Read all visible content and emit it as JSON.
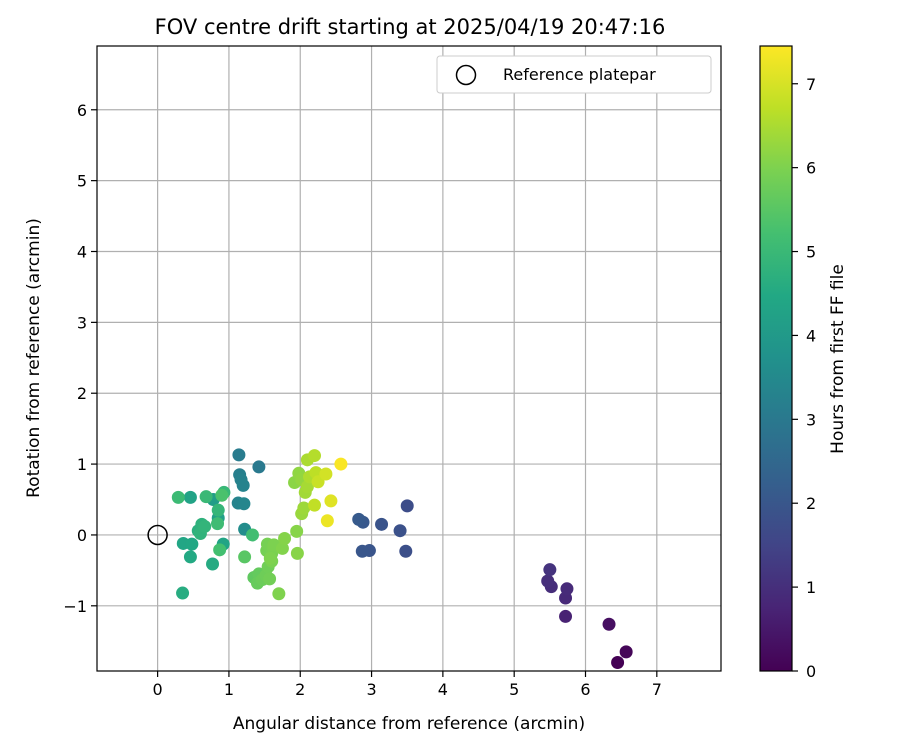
{
  "chart_data": {
    "type": "scatter",
    "title": "FOV centre drift starting at 2025/04/19 20:47:16",
    "xlabel": "Angular distance from reference (arcmin)",
    "ylabel": "Rotation from reference (arcmin)",
    "xlim": [
      -0.85,
      7.9
    ],
    "ylim": [
      -1.92,
      6.9
    ],
    "xticks": [
      0,
      1,
      2,
      3,
      4,
      5,
      6,
      7
    ],
    "yticks": [
      -1,
      0,
      1,
      2,
      3,
      4,
      5,
      6
    ],
    "grid": true,
    "legend": {
      "placement": "upper right",
      "entries": [
        "Reference platepar"
      ]
    },
    "reference_point": {
      "x": 0,
      "y": 0
    },
    "colorbar": {
      "label": "Hours from first FF file",
      "range": [
        0,
        7.45
      ],
      "ticks": [
        0,
        1,
        2,
        3,
        4,
        5,
        6,
        7
      ],
      "colormap": "viridis"
    },
    "points": [
      {
        "x": 6.45,
        "y": -1.8,
        "t": 0.0
      },
      {
        "x": 6.57,
        "y": -1.65,
        "t": 0.1
      },
      {
        "x": 6.33,
        "y": -1.26,
        "t": 0.3
      },
      {
        "x": 5.72,
        "y": -1.15,
        "t": 0.7
      },
      {
        "x": 5.72,
        "y": -0.89,
        "t": 0.85
      },
      {
        "x": 5.74,
        "y": -0.76,
        "t": 0.9
      },
      {
        "x": 5.52,
        "y": -0.73,
        "t": 0.95
      },
      {
        "x": 5.47,
        "y": -0.65,
        "t": 1.0
      },
      {
        "x": 5.5,
        "y": -0.49,
        "t": 1.1
      },
      {
        "x": 3.5,
        "y": 0.41,
        "t": 1.75
      },
      {
        "x": 3.48,
        "y": -0.23,
        "t": 1.8
      },
      {
        "x": 3.4,
        "y": 0.06,
        "t": 1.85
      },
      {
        "x": 3.14,
        "y": 0.15,
        "t": 1.9
      },
      {
        "x": 2.97,
        "y": -0.22,
        "t": 1.95
      },
      {
        "x": 2.87,
        "y": -0.23,
        "t": 2.0
      },
      {
        "x": 2.88,
        "y": 0.18,
        "t": 2.05
      },
      {
        "x": 2.82,
        "y": 0.22,
        "t": 2.1
      },
      {
        "x": 1.42,
        "y": 0.96,
        "t": 3.0
      },
      {
        "x": 1.14,
        "y": 1.13,
        "t": 3.1
      },
      {
        "x": 1.15,
        "y": 0.85,
        "t": 3.2
      },
      {
        "x": 1.17,
        "y": 0.78,
        "t": 3.25
      },
      {
        "x": 1.2,
        "y": 0.7,
        "t": 3.3
      },
      {
        "x": 1.13,
        "y": 0.45,
        "t": 3.35
      },
      {
        "x": 1.21,
        "y": 0.44,
        "t": 3.4
      },
      {
        "x": 1.22,
        "y": 0.08,
        "t": 3.6
      },
      {
        "x": 0.78,
        "y": 0.5,
        "t": 4.1
      },
      {
        "x": 0.85,
        "y": 0.24,
        "t": 4.2
      },
      {
        "x": 0.46,
        "y": 0.53,
        "t": 4.3
      },
      {
        "x": 0.92,
        "y": -0.13,
        "t": 4.35
      },
      {
        "x": 0.36,
        "y": -0.12,
        "t": 4.4
      },
      {
        "x": 0.48,
        "y": -0.13,
        "t": 4.45
      },
      {
        "x": 0.46,
        "y": -0.31,
        "t": 4.5
      },
      {
        "x": 0.77,
        "y": -0.41,
        "t": 4.55
      },
      {
        "x": 0.35,
        "y": -0.82,
        "t": 4.6
      },
      {
        "x": 0.57,
        "y": 0.06,
        "t": 4.7
      },
      {
        "x": 0.62,
        "y": 0.15,
        "t": 4.75
      },
      {
        "x": 0.6,
        "y": 0.02,
        "t": 4.8
      },
      {
        "x": 0.66,
        "y": 0.12,
        "t": 4.85
      },
      {
        "x": 0.85,
        "y": 0.35,
        "t": 4.9
      },
      {
        "x": 0.93,
        "y": 0.6,
        "t": 4.95
      },
      {
        "x": 0.68,
        "y": 0.54,
        "t": 5.0
      },
      {
        "x": 0.29,
        "y": 0.53,
        "t": 5.05
      },
      {
        "x": 0.84,
        "y": 0.16,
        "t": 5.1
      },
      {
        "x": 1.33,
        "y": 0.0,
        "t": 5.15
      },
      {
        "x": 0.87,
        "y": -0.21,
        "t": 5.2
      },
      {
        "x": 0.9,
        "y": 0.56,
        "t": 5.3
      },
      {
        "x": 1.22,
        "y": -0.31,
        "t": 5.5
      },
      {
        "x": 1.35,
        "y": -0.6,
        "t": 5.6
      },
      {
        "x": 1.42,
        "y": -0.55,
        "t": 5.65
      },
      {
        "x": 1.4,
        "y": -0.68,
        "t": 5.7
      },
      {
        "x": 1.47,
        "y": -0.63,
        "t": 5.75
      },
      {
        "x": 1.52,
        "y": -0.57,
        "t": 5.8
      },
      {
        "x": 1.55,
        "y": -0.45,
        "t": 5.82
      },
      {
        "x": 1.57,
        "y": -0.62,
        "t": 5.85
      },
      {
        "x": 1.53,
        "y": -0.22,
        "t": 5.88
      },
      {
        "x": 1.54,
        "y": -0.13,
        "t": 5.9
      },
      {
        "x": 1.6,
        "y": -0.26,
        "t": 5.92
      },
      {
        "x": 1.6,
        "y": -0.37,
        "t": 5.94
      },
      {
        "x": 1.62,
        "y": -0.18,
        "t": 5.96
      },
      {
        "x": 1.63,
        "y": -0.14,
        "t": 5.98
      },
      {
        "x": 1.58,
        "y": -0.33,
        "t": 6.0
      },
      {
        "x": 1.7,
        "y": -0.83,
        "t": 6.02
      },
      {
        "x": 1.75,
        "y": -0.19,
        "t": 6.05
      },
      {
        "x": 1.78,
        "y": -0.05,
        "t": 6.08
      },
      {
        "x": 1.95,
        "y": 0.05,
        "t": 6.1
      },
      {
        "x": 1.96,
        "y": -0.26,
        "t": 6.12
      },
      {
        "x": 1.92,
        "y": 0.74,
        "t": 6.15
      },
      {
        "x": 1.98,
        "y": 0.87,
        "t": 6.2
      },
      {
        "x": 2.02,
        "y": 0.78,
        "t": 6.25
      },
      {
        "x": 2.02,
        "y": 0.3,
        "t": 6.3
      },
      {
        "x": 2.05,
        "y": 0.38,
        "t": 6.35
      },
      {
        "x": 2.07,
        "y": 0.6,
        "t": 6.4
      },
      {
        "x": 2.1,
        "y": 0.68,
        "t": 6.45
      },
      {
        "x": 2.1,
        "y": 1.06,
        "t": 6.5
      },
      {
        "x": 2.13,
        "y": 0.82,
        "t": 6.55
      },
      {
        "x": 2.2,
        "y": 1.12,
        "t": 6.6
      },
      {
        "x": 2.22,
        "y": 0.88,
        "t": 6.7
      },
      {
        "x": 2.2,
        "y": 0.42,
        "t": 6.75
      },
      {
        "x": 2.25,
        "y": 0.75,
        "t": 6.85
      },
      {
        "x": 2.36,
        "y": 0.86,
        "t": 6.95
      },
      {
        "x": 2.43,
        "y": 0.48,
        "t": 7.1
      },
      {
        "x": 2.38,
        "y": 0.2,
        "t": 7.25
      },
      {
        "x": 2.57,
        "y": 1.0,
        "t": 7.4
      }
    ]
  }
}
